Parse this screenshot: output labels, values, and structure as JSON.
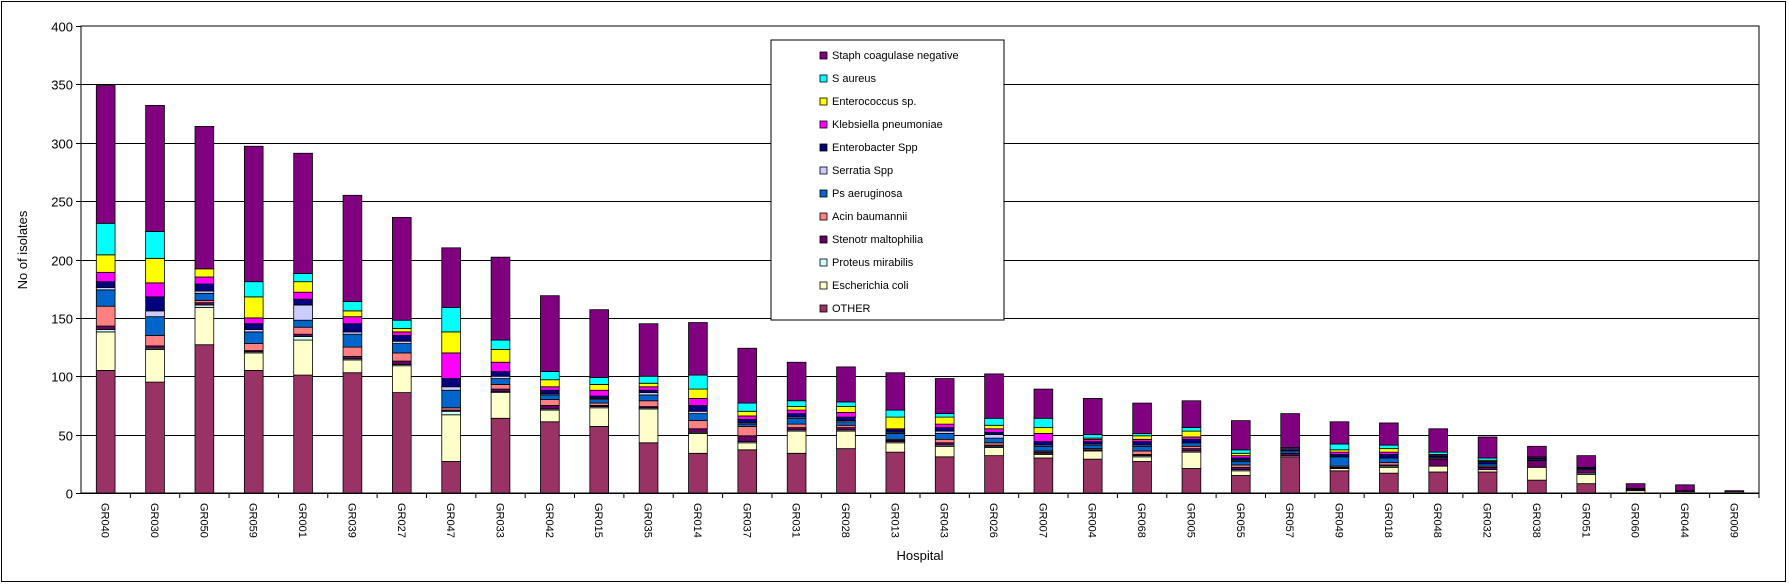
{
  "chart_data": {
    "type": "bar",
    "stacked": true,
    "title": "",
    "xlabel": "Hospital",
    "ylabel": "No of isolates",
    "ylim": [
      0,
      400
    ],
    "yticks": [
      0,
      50,
      100,
      150,
      200,
      250,
      300,
      350,
      400
    ],
    "grid": true,
    "legend_position": "top-center",
    "categories": [
      "GR040",
      "GR030",
      "GR050",
      "GR059",
      "GR001",
      "GR039",
      "GR027",
      "GR047",
      "GR033",
      "GR042",
      "GR015",
      "GR035",
      "GR014",
      "GR037",
      "GR031",
      "GR028",
      "GR013",
      "GR043",
      "GR026",
      "GR007",
      "GR004",
      "GR068",
      "GR005",
      "GR055",
      "GR057",
      "GR049",
      "GR018",
      "GR048",
      "GR032",
      "GR038",
      "GR051",
      "GR060",
      "GR044",
      "GR009"
    ],
    "series": [
      {
        "name": "OTHER",
        "color": "#993366",
        "values": [
          105,
          95,
          127,
          105,
          101,
          103,
          86,
          27,
          64,
          61,
          57,
          43,
          34,
          37,
          34,
          38,
          35,
          31,
          32,
          30,
          29,
          27,
          21,
          15,
          31,
          19,
          17,
          18,
          18,
          11,
          8,
          0,
          0,
          0
        ]
      },
      {
        "name": "Escherichia coli",
        "color": "#FFFFCC",
        "values": [
          33,
          28,
          32,
          15,
          30,
          11,
          23,
          40,
          22,
          10,
          16,
          29,
          17,
          6,
          19,
          15,
          8,
          9,
          7,
          3,
          7,
          4,
          14,
          4,
          1,
          2,
          5,
          5,
          2,
          11,
          8,
          2,
          1,
          1
        ]
      },
      {
        "name": "Proteus mirabilis",
        "color": "#CCFFFF",
        "values": [
          2,
          1,
          2,
          1,
          3,
          1,
          1,
          3,
          1,
          1,
          1,
          1,
          1,
          1,
          1,
          1,
          1,
          1,
          1,
          1,
          0,
          1,
          1,
          1,
          0,
          0,
          1,
          0,
          0,
          0,
          1,
          0,
          0,
          0
        ]
      },
      {
        "name": "Stenotr maltophilia",
        "color": "#660066",
        "values": [
          3,
          2,
          2,
          1,
          2,
          2,
          3,
          1,
          2,
          3,
          1,
          1,
          3,
          5,
          2,
          2,
          1,
          2,
          1,
          1,
          1,
          1,
          2,
          2,
          2,
          1,
          1,
          6,
          2,
          6,
          3,
          1,
          1,
          0
        ]
      },
      {
        "name": "Acin baumannii",
        "color": "#FF8080",
        "values": [
          17,
          9,
          2,
          6,
          6,
          8,
          7,
          2,
          4,
          5,
          2,
          5,
          7,
          8,
          3,
          2,
          1,
          3,
          2,
          1,
          1,
          3,
          2,
          2,
          0,
          1,
          2,
          1,
          1,
          0,
          0,
          0,
          0,
          0
        ]
      },
      {
        "name": "Ps aeruginosa",
        "color": "#0066CC",
        "values": [
          14,
          16,
          6,
          10,
          6,
          11,
          8,
          15,
          5,
          4,
          3,
          5,
          6,
          2,
          5,
          3,
          5,
          5,
          4,
          4,
          3,
          4,
          3,
          3,
          2,
          8,
          4,
          1,
          2,
          1,
          1,
          0,
          0,
          0
        ]
      },
      {
        "name": "Serratia Spp",
        "color": "#CCCCFF",
        "values": [
          2,
          5,
          2,
          2,
          13,
          2,
          2,
          3,
          2,
          1,
          1,
          2,
          2,
          1,
          1,
          1,
          1,
          2,
          3,
          1,
          1,
          1,
          0,
          1,
          0,
          0,
          0,
          0,
          0,
          0,
          0,
          0,
          0,
          0
        ]
      },
      {
        "name": "Enterobacter Spp",
        "color": "#000080",
        "values": [
          5,
          12,
          6,
          5,
          5,
          7,
          5,
          7,
          4,
          3,
          2,
          2,
          5,
          3,
          3,
          3,
          2,
          3,
          2,
          3,
          2,
          3,
          3,
          2,
          1,
          2,
          3,
          1,
          2,
          1,
          1,
          1,
          0,
          0
        ]
      },
      {
        "name": "Klebsiella pneumoniae",
        "color": "#FF00FF",
        "values": [
          8,
          12,
          6,
          5,
          6,
          6,
          3,
          22,
          8,
          3,
          5,
          3,
          6,
          3,
          3,
          4,
          1,
          3,
          3,
          7,
          2,
          2,
          2,
          2,
          1,
          2,
          2,
          1,
          0,
          1,
          0,
          0,
          0,
          0
        ]
      },
      {
        "name": "Enterococcus sp.",
        "color": "#FFFF00",
        "values": [
          15,
          21,
          7,
          18,
          9,
          5,
          3,
          18,
          11,
          6,
          5,
          3,
          8,
          4,
          3,
          5,
          10,
          6,
          3,
          5,
          1,
          3,
          5,
          2,
          0,
          2,
          3,
          0,
          1,
          0,
          0,
          0,
          0,
          0
        ]
      },
      {
        "name": "S aureus",
        "color": "#00FFFF",
        "values": [
          27,
          23,
          0,
          13,
          7,
          8,
          7,
          21,
          8,
          7,
          6,
          6,
          12,
          7,
          5,
          4,
          6,
          3,
          6,
          8,
          3,
          2,
          3,
          3,
          1,
          5,
          3,
          2,
          2,
          0,
          0,
          0,
          0,
          0
        ]
      },
      {
        "name": "Staph coagulase negative",
        "color": "#800080",
        "values": [
          118,
          108,
          122,
          116,
          103,
          91,
          88,
          51,
          71,
          65,
          58,
          45,
          45,
          47,
          33,
          30,
          32,
          30,
          38,
          25,
          31,
          26,
          23,
          25,
          29,
          19,
          19,
          20,
          18,
          9,
          10,
          4,
          5,
          1
        ]
      }
    ]
  }
}
